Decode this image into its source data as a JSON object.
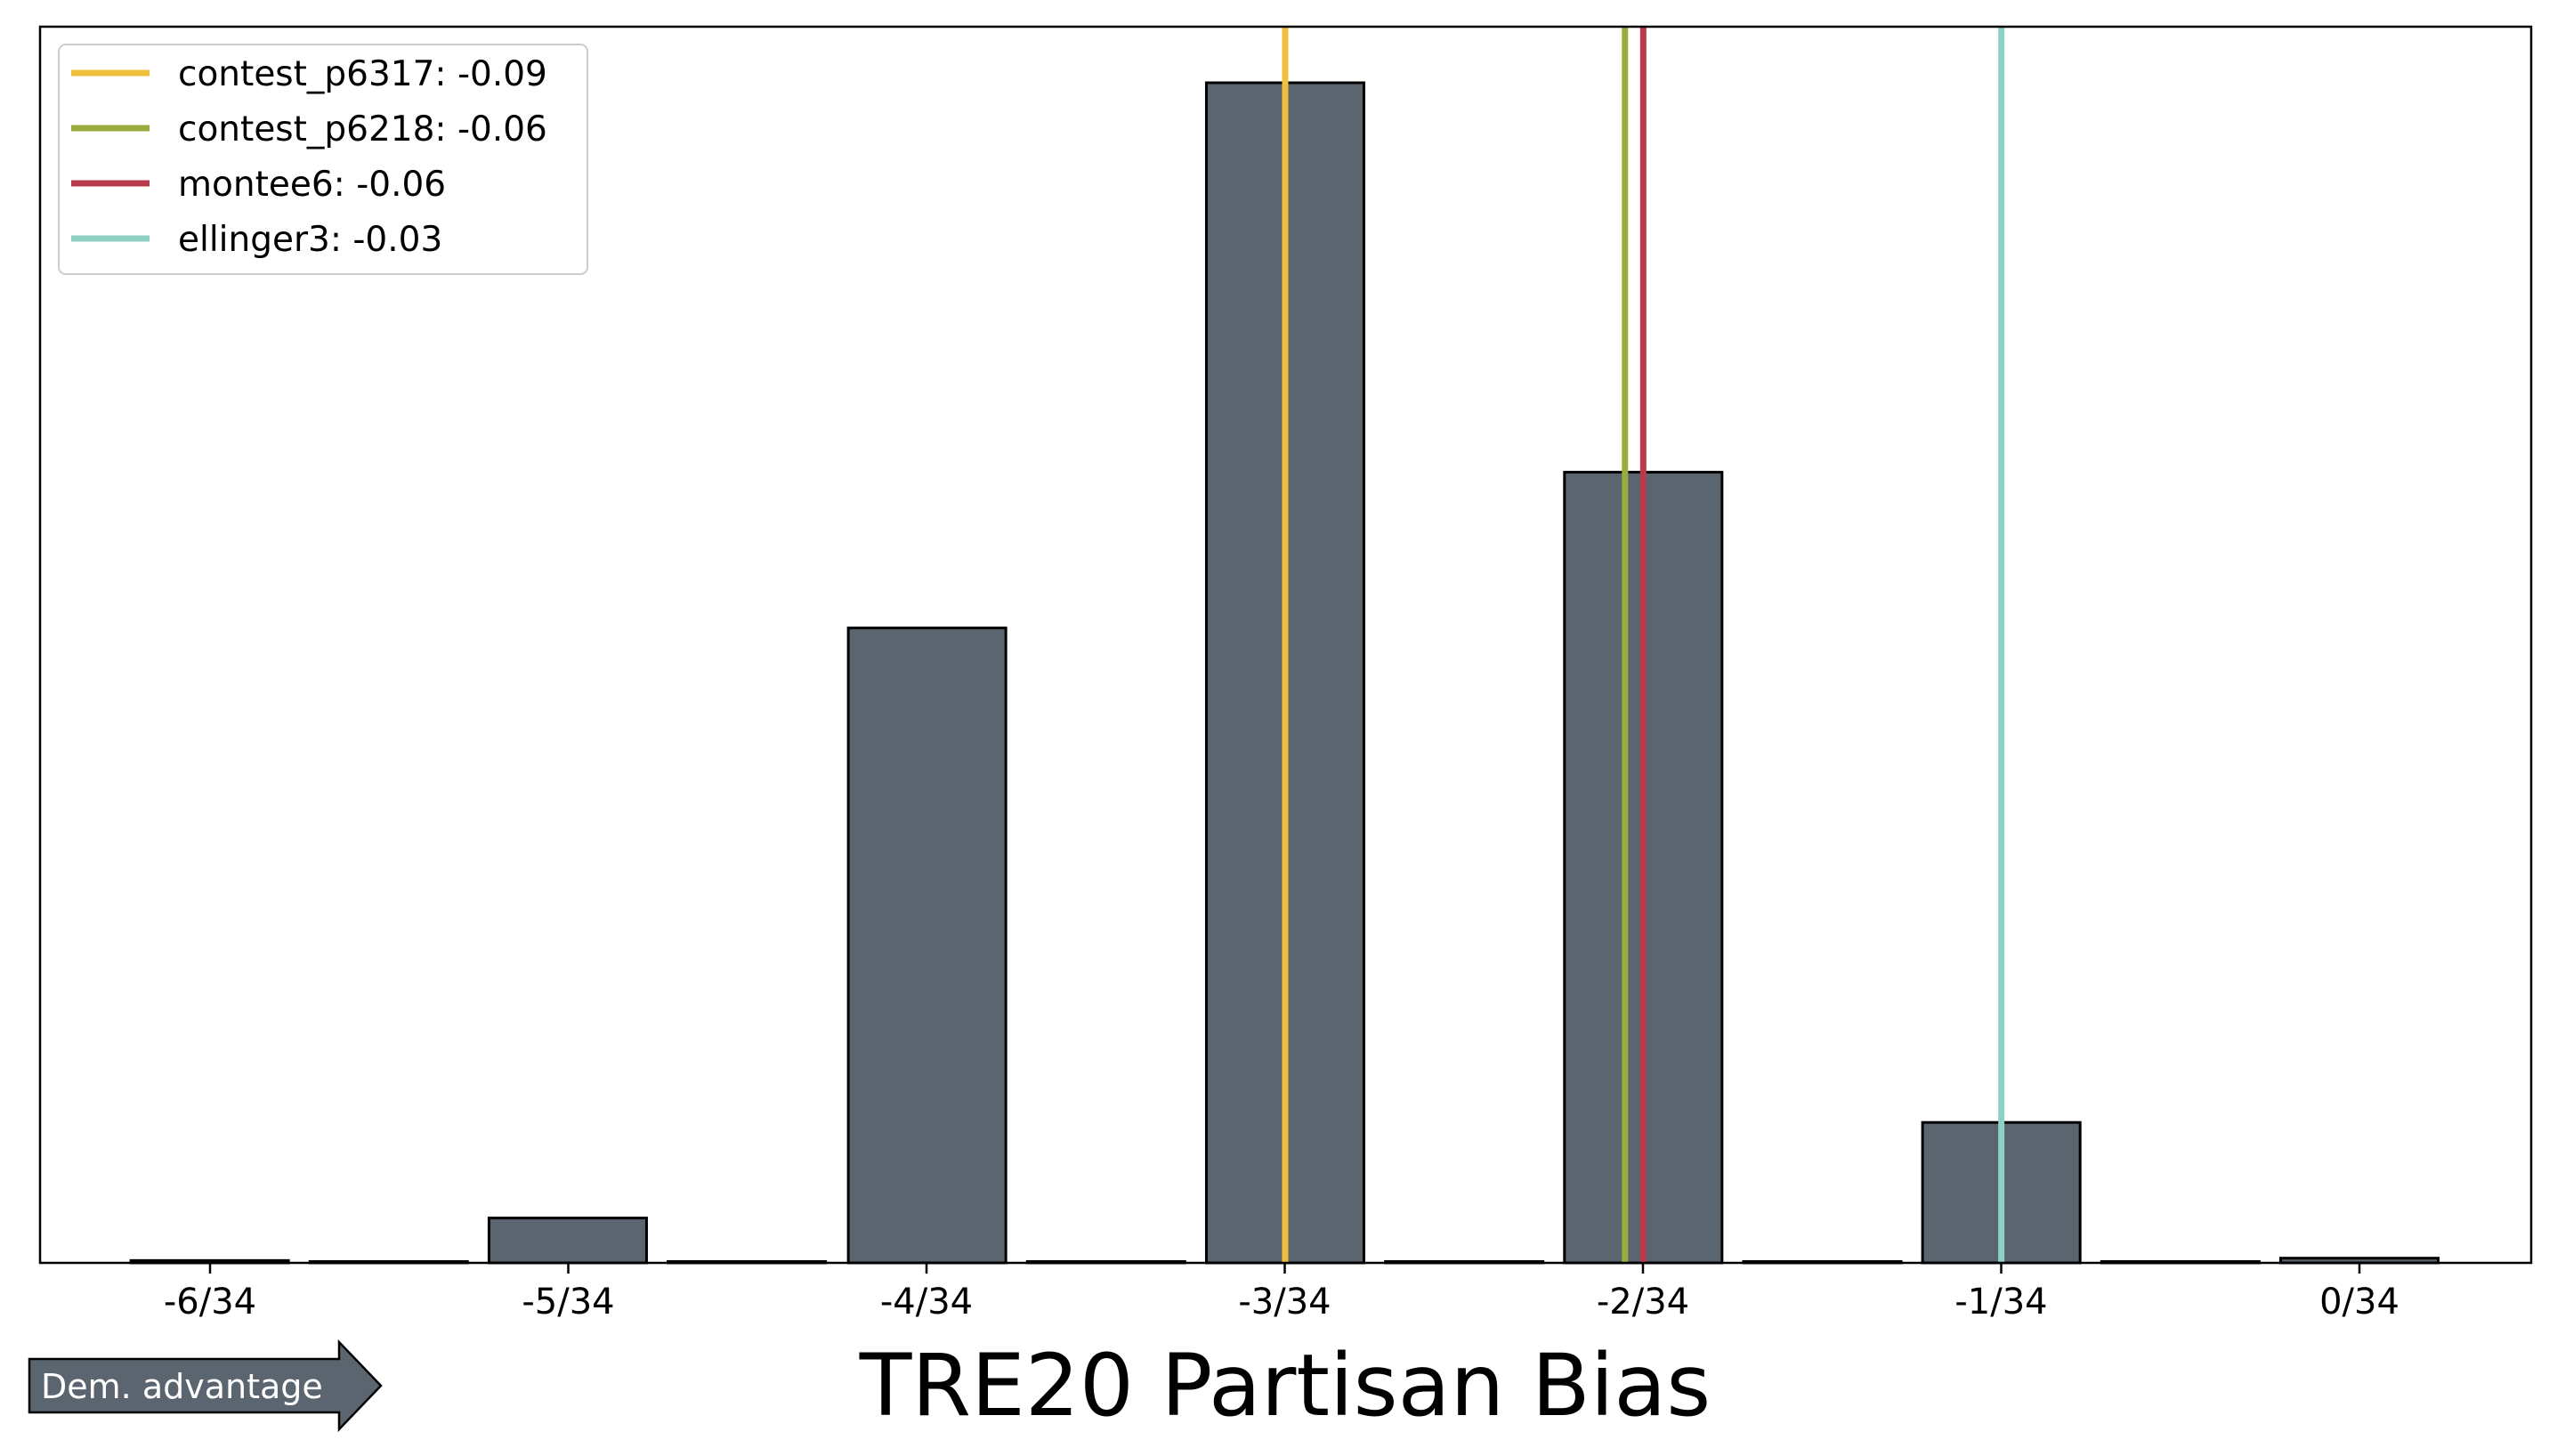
{
  "chart_data": {
    "type": "bar",
    "title": "",
    "xlabel": "TRE20 Partisan Bias",
    "ylabel": "",
    "x_tick_labels": [
      "-6/34",
      "-5/34",
      "-4/34",
      "-3/34",
      "-2/34",
      "-1/34",
      "0/34"
    ],
    "x_range": [
      -0.191,
      0.0
    ],
    "ylim": [
      0,
      1.05
    ],
    "bar_width": 0.00588,
    "bar_color": "#5a6570",
    "bars": [
      {
        "x": -0.1765,
        "value": 0.002
      },
      {
        "x": -0.1618,
        "value": 0.001
      },
      {
        "x": -0.1471,
        "value": 0.038
      },
      {
        "x": -0.1324,
        "value": 0.001
      },
      {
        "x": -0.1176,
        "value": 0.538
      },
      {
        "x": -0.1029,
        "value": 0.001
      },
      {
        "x": -0.0882,
        "value": 1.0
      },
      {
        "x": -0.0735,
        "value": 0.001
      },
      {
        "x": -0.0588,
        "value": 0.67
      },
      {
        "x": -0.0441,
        "value": 0.001
      },
      {
        "x": -0.0294,
        "value": 0.119
      },
      {
        "x": -0.0147,
        "value": 0.001
      },
      {
        "x": 0.0,
        "value": 0.004
      }
    ],
    "reference_lines": [
      {
        "name": "contest_p6317",
        "label": "contest_p6317: -0.09",
        "x": -0.0882,
        "color": "#f0c03c"
      },
      {
        "name": "contest_p6218",
        "label": "contest_p6218: -0.06",
        "x": -0.0603,
        "color": "#97ad3d"
      },
      {
        "name": "montee6",
        "label": "montee6: -0.06",
        "x": -0.0588,
        "color": "#b83a4b"
      },
      {
        "name": "ellinger3",
        "label": "ellinger3: -0.03",
        "x": -0.0294,
        "color": "#8fd1c4"
      }
    ],
    "legend_position": "upper-left",
    "grid": false
  },
  "annotation": {
    "arrow_label": "Dem. advantage",
    "arrow_color": "#5a6570"
  }
}
